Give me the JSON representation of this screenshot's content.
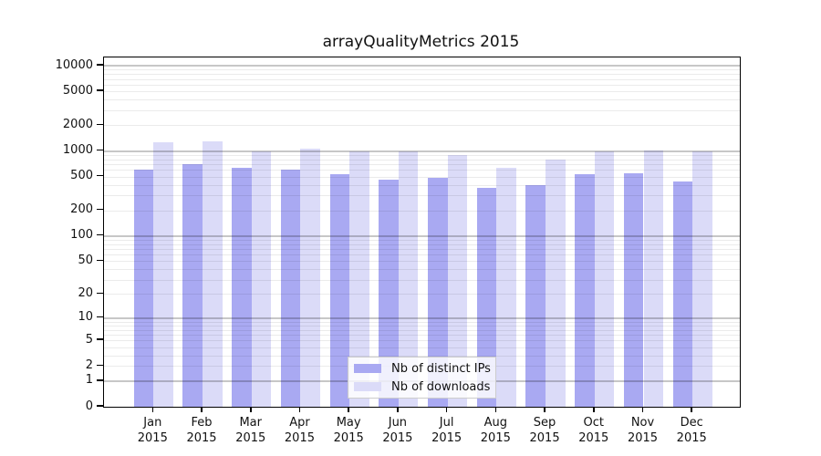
{
  "title": "arrayQualityMetrics 2015",
  "legend": {
    "items": [
      {
        "label": "Nb of distinct IPs",
        "color": "#a9a9f2"
      },
      {
        "label": "Nb of downloads",
        "color": "#dbdbf8"
      }
    ]
  },
  "chart_data": {
    "type": "bar",
    "title": "arrayQualityMetrics 2015",
    "categories": [
      "Jan 2015",
      "Feb 2015",
      "Mar 2015",
      "Apr 2015",
      "May 2015",
      "Jun 2015",
      "Jul 2015",
      "Aug 2015",
      "Sep 2015",
      "Oct 2015",
      "Nov 2015",
      "Dec 2015"
    ],
    "series": [
      {
        "name": "Nb of distinct IPs",
        "color": "#a9a9f2",
        "values": [
          610,
          700,
          630,
          600,
          535,
          460,
          480,
          370,
          395,
          530,
          550,
          435
        ]
      },
      {
        "name": "Nb of downloads",
        "color": "#dbdbf8",
        "values": [
          1250,
          1300,
          990,
          1060,
          1000,
          980,
          890,
          640,
          790,
          980,
          1005,
          985
        ]
      }
    ],
    "xlabel": "",
    "ylabel": "",
    "yscale": "log10(1+y)",
    "ylim": [
      0,
      12500
    ],
    "yticks": [
      0,
      1,
      2,
      5,
      10,
      20,
      50,
      100,
      200,
      500,
      1000,
      2000,
      5000,
      10000
    ],
    "grid": "on",
    "grid_major_at": [
      1,
      10,
      100,
      1000,
      10000
    ],
    "legend_position": "inside-bottom-center"
  }
}
